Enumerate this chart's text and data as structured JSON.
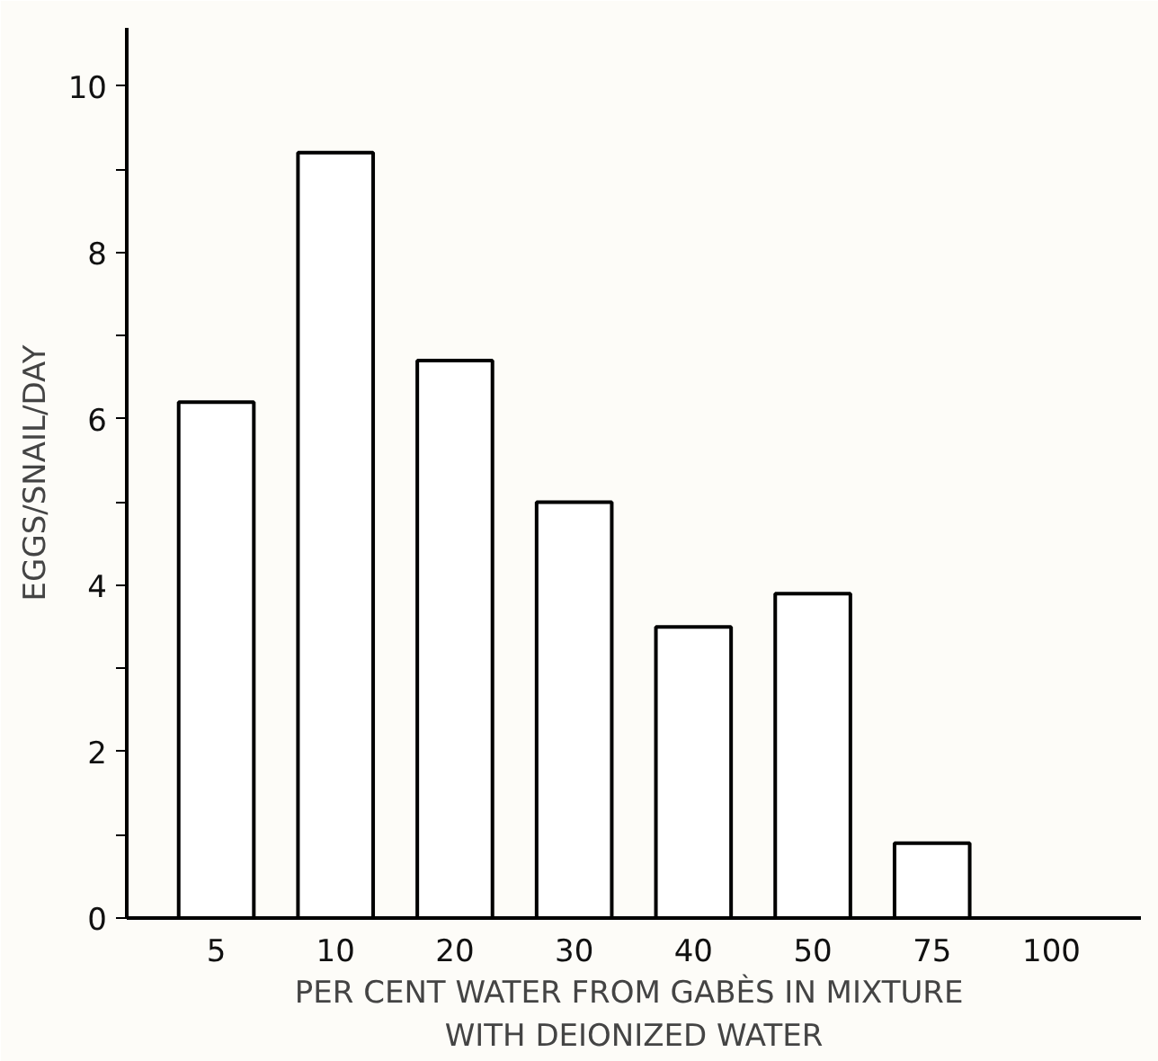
{
  "chart_data": {
    "type": "bar",
    "xlabel": "PER CENT WATER FROM  GABÈS IN MIXTURE\nWITH DEIONIZED WATER",
    "ylabel": "EGGS/SNAIL/DAY",
    "categories": [
      "5",
      "10",
      "20",
      "30",
      "40",
      "50",
      "75",
      "100"
    ],
    "values": [
      6.2,
      9.2,
      6.7,
      5.0,
      3.5,
      3.9,
      0.9,
      0
    ],
    "color": "#ffffff",
    "ylim": [
      0,
      10.7
    ],
    "yticks": [
      0,
      {
        "value": 1,
        "label": null
      },
      2,
      {
        "value": 3,
        "label": null
      },
      4,
      {
        "value": 5,
        "label": null
      },
      6,
      {
        "value": 7,
        "label": null
      },
      8,
      {
        "value": 9,
        "label": null
      },
      10
    ],
    "grid": false
  }
}
